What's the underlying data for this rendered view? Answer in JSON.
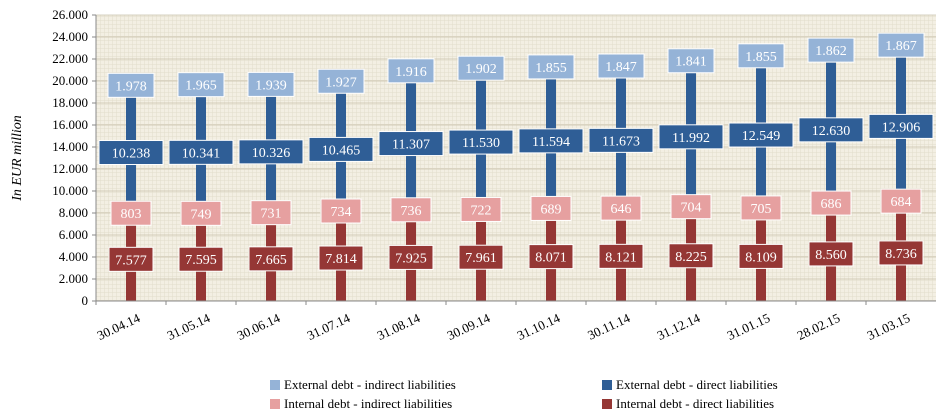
{
  "chart_data": {
    "type": "bar",
    "stacked": true,
    "ylabel": "In EUR million",
    "xlabel": "",
    "ylim": [
      0,
      26000
    ],
    "ytick_step": 2000,
    "ytick_labels": [
      "0",
      "2.000",
      "4.000",
      "6.000",
      "8.000",
      "10.000",
      "12.000",
      "14.000",
      "16.000",
      "18.000",
      "20.000",
      "22.000",
      "24.000",
      "26.000"
    ],
    "categories": [
      "30.04.14",
      "31.05.14",
      "30.06.14",
      "31.07.14",
      "31.08.14",
      "30.09.14",
      "31.10.14",
      "30.11.14",
      "31.12.14",
      "31.01.15",
      "28.02.15",
      "31.03.15"
    ],
    "series": [
      {
        "name": "Internal debt - direct liabilities",
        "color": "#953735",
        "values": [
          7577,
          7595,
          7665,
          7814,
          7925,
          7961,
          8071,
          8121,
          8225,
          8109,
          8560,
          8736
        ],
        "labels": [
          "7.577",
          "7.595",
          "7.665",
          "7.814",
          "7.925",
          "7.961",
          "8.071",
          "8.121",
          "8.225",
          "8.109",
          "8.560",
          "8.736"
        ]
      },
      {
        "name": "Internal debt - indirect liabilities",
        "color": "#E6A0A0",
        "values": [
          803,
          749,
          731,
          734,
          736,
          722,
          689,
          646,
          704,
          705,
          686,
          684
        ],
        "labels": [
          "803",
          "749",
          "731",
          "734",
          "736",
          "722",
          "689",
          "646",
          "704",
          "705",
          "686",
          "684"
        ]
      },
      {
        "name": "External debt - direct liabilities",
        "color": "#2F5E96",
        "values": [
          10238,
          10341,
          10326,
          10465,
          11307,
          11530,
          11594,
          11673,
          11992,
          12549,
          12630,
          12906
        ],
        "labels": [
          "10.238",
          "10.341",
          "10.326",
          "10.465",
          "11.307",
          "11.530",
          "11.594",
          "11.673",
          "11.992",
          "12.549",
          "12.630",
          "12.906"
        ]
      },
      {
        "name": "External debt - indirect liabilities",
        "color": "#95B3D7",
        "values": [
          1978,
          1965,
          1939,
          1927,
          1916,
          1902,
          1855,
          1847,
          1841,
          1855,
          1862,
          1867
        ],
        "labels": [
          "1.978",
          "1.965",
          "1.939",
          "1.927",
          "1.916",
          "1.902",
          "1.855",
          "1.847",
          "1.841",
          "1.855",
          "1.862",
          "1.867"
        ]
      }
    ],
    "grid": true,
    "legend_position": "bottom"
  },
  "legend": {
    "items": [
      {
        "label": "External debt - indirect liabilities",
        "color": "#95B3D7"
      },
      {
        "label": "External debt - direct liabilities",
        "color": "#2F5E96"
      },
      {
        "label": "Internal debt - indirect liabilities",
        "color": "#E6A0A0"
      },
      {
        "label": "Internal debt - direct liabilities",
        "color": "#953735"
      }
    ]
  }
}
